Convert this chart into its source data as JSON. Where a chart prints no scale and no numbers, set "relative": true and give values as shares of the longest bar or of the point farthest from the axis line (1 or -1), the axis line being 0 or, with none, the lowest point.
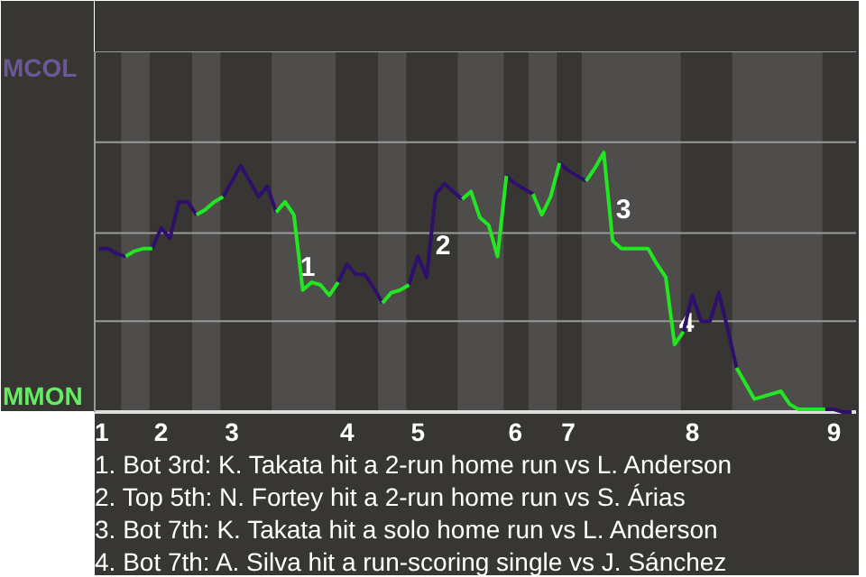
{
  "chart_data": {
    "type": "line",
    "relative": true,
    "categories": [
      "1",
      null,
      null,
      null,
      null,
      null,
      null,
      "2",
      null,
      null,
      null,
      null,
      null,
      null,
      null,
      "3",
      null,
      null,
      null,
      null,
      null,
      null,
      null,
      null,
      null,
      null,
      null,
      null,
      "4",
      null,
      null,
      null,
      null,
      null,
      null,
      null,
      "5",
      null,
      null,
      null,
      null,
      null,
      null,
      null,
      null,
      null,
      null,
      "6",
      null,
      null,
      null,
      null,
      null,
      "7",
      null,
      null,
      null,
      null,
      null,
      null,
      null,
      null,
      null,
      null,
      null,
      null,
      null,
      "8",
      null,
      null,
      null,
      null,
      null,
      null,
      null,
      null,
      null,
      null,
      null,
      null,
      null,
      null,
      null,
      "9",
      null,
      null
    ],
    "ref_lines": [
      {
        "axis": "y",
        "value": 0.35,
        "color": "#9a9a9a"
      },
      {
        "axis": "y",
        "value": 0.69,
        "color": "#9a9a9a"
      },
      {
        "axis": "y",
        "value": 1.04,
        "color": "#9a9a9a"
      },
      {
        "axis": "y",
        "value": 1.39,
        "color": "#9a9a9a"
      }
    ],
    "series": [
      {
        "color": "#2e0f6b",
        "values": [
          0.63,
          0.63,
          0.61,
          0.6,
          null,
          null,
          0.63,
          0.71,
          0.67,
          0.81,
          0.81,
          0.76,
          null,
          null,
          0.83,
          0.89,
          0.95,
          0.89,
          0.83,
          0.87,
          0.77,
          null,
          null,
          null,
          null,
          null,
          null,
          0.5,
          0.57,
          0.53,
          0.53,
          0.48,
          0.42,
          null,
          null,
          0.49,
          0.6,
          0.52,
          0.84,
          0.88,
          0.85,
          0.82,
          null,
          null,
          null,
          null,
          0.91,
          0.88,
          0.86,
          0.84,
          null,
          null,
          0.96,
          0.93,
          0.91,
          0.89,
          null,
          null,
          null,
          null,
          null,
          null,
          null,
          null,
          null,
          null,
          0.31,
          0.45,
          0.35,
          0.35,
          0.46,
          0.32,
          0.17,
          null,
          null,
          null,
          null,
          null,
          null,
          null,
          null,
          null,
          0.01,
          0.01,
          0,
          0
        ]
      },
      {
        "color": "#22e622",
        "values": [
          null,
          null,
          null,
          0.6,
          0.62,
          0.63,
          0.63,
          null,
          null,
          null,
          null,
          0.76,
          0.78,
          0.81,
          0.83,
          null,
          null,
          null,
          null,
          null,
          0.77,
          0.81,
          0.76,
          0.47,
          0.5,
          0.49,
          0.45,
          0.5,
          null,
          null,
          null,
          null,
          0.42,
          0.46,
          0.47,
          0.49,
          null,
          null,
          null,
          null,
          null,
          0.82,
          0.85,
          0.75,
          0.72,
          0.6,
          0.91,
          null,
          null,
          0.84,
          0.76,
          0.83,
          0.96,
          null,
          null,
          0.89,
          0.94,
          1,
          0.66,
          0.63,
          0.63,
          0.63,
          0.63,
          0.57,
          0.52,
          0.26,
          0.31,
          null,
          null,
          null,
          null,
          null,
          0.17,
          0.11,
          0.05,
          0.06,
          0.07,
          0.08,
          0.03,
          0.01,
          0.01,
          0.01,
          0.01,
          null,
          null,
          null
        ]
      }
    ],
    "annotations": [
      "MCOL",
      "MMON",
      "1",
      "2",
      "3",
      "4",
      "1. Bot 3rd: K. Takata hit a 2-run home run vs L. Anderson",
      "2. Top 5th: N. Fortey hit a 2-run home run vs S. Árias",
      "3. Bot 7th: K. Takata hit a solo home run vs L. Anderson",
      "4. Bot 7th: A. Silva hit a run-scoring single vs J. Sánchez"
    ]
  }
}
